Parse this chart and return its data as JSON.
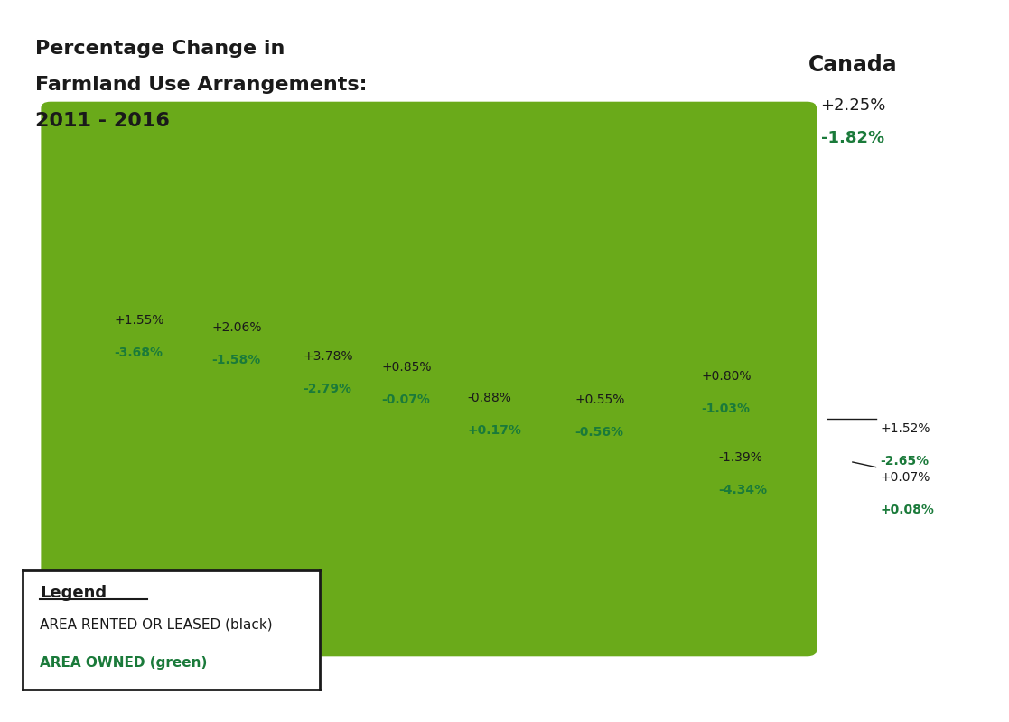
{
  "title_line1": "Percentage Change in",
  "title_line2": "Farmland Use Arrangements:",
  "title_line3": "2011 - 2016",
  "title_fontsize": 16,
  "background_color": "#ffffff",
  "map_color": "#6aaa1a",
  "border_color": "#ffffff",
  "black_color": "#1a1a1a",
  "green_color": "#1a7a3a",
  "canada_label": "Canada",
  "canada_rented": "+2.25%",
  "canada_owned": "-1.82%",
  "annotations": [
    {
      "rented": "+1.55%",
      "owned": "-3.68%",
      "fx": 0.113,
      "fy": 0.565
    },
    {
      "rented": "+2.06%",
      "owned": "-1.58%",
      "fx": 0.21,
      "fy": 0.555
    },
    {
      "rented": "+3.78%",
      "owned": "-2.79%",
      "fx": 0.3,
      "fy": 0.515
    },
    {
      "rented": "+0.85%",
      "owned": "-0.07%",
      "fx": 0.378,
      "fy": 0.5
    },
    {
      "rented": "-0.88%",
      "owned": "+0.17%",
      "fx": 0.463,
      "fy": 0.458
    },
    {
      "rented": "+0.55%",
      "owned": "-0.56%",
      "fx": 0.57,
      "fy": 0.455
    },
    {
      "rented": "-1.39%",
      "owned": "-4.34%",
      "fx": 0.712,
      "fy": 0.375
    },
    {
      "rented": "+0.80%",
      "owned": "-1.03%",
      "fx": 0.695,
      "fy": 0.488
    },
    {
      "rented": "+1.52%",
      "owned": "-2.65%",
      "fx": 0.872,
      "fy": 0.415
    },
    {
      "rented": "+0.07%",
      "owned": "+0.08%",
      "fx": 0.872,
      "fy": 0.348
    }
  ],
  "legend_title": "Legend",
  "legend_line1": "AREA RENTED OR LEASED (black)",
  "legend_line2": "AREA OWNED (green)",
  "legend_fontsize": 11,
  "legend_title_fontsize": 13
}
